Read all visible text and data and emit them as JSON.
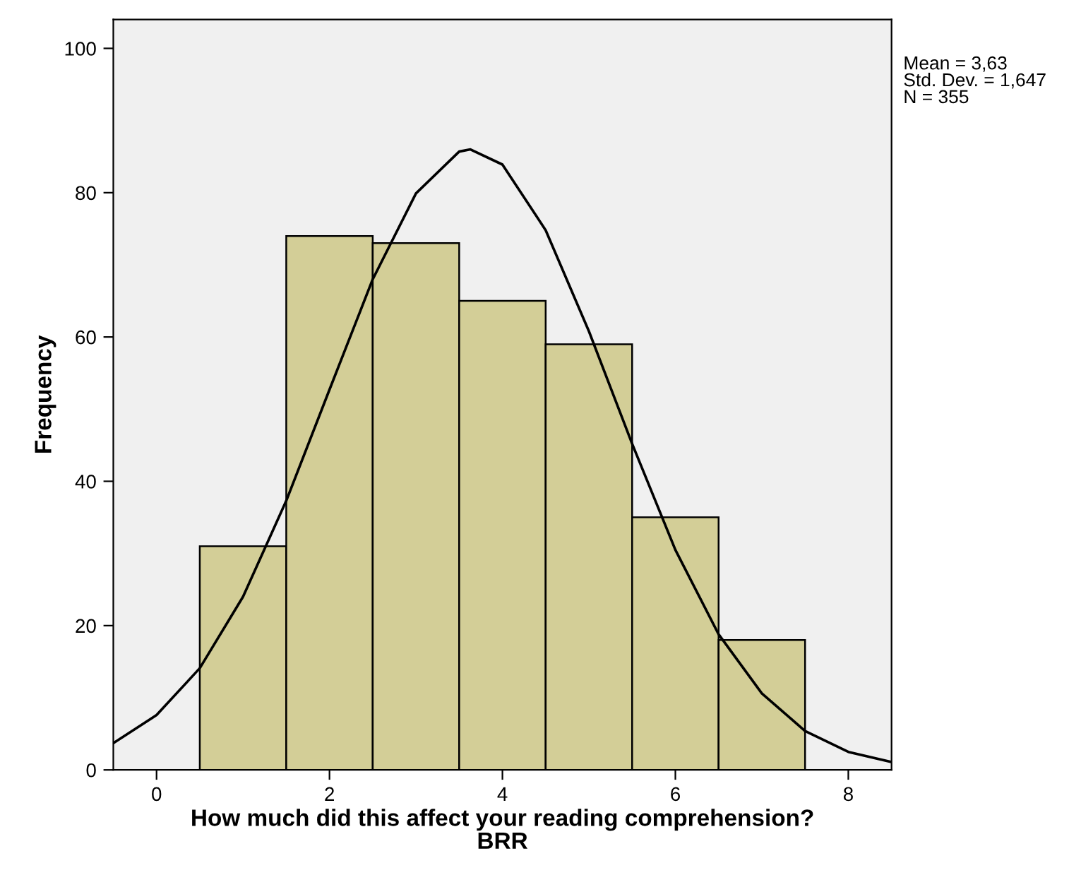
{
  "chart_data": {
    "type": "histogram",
    "xlabel": "How much did this affect your reading comprehension?\nBRR",
    "ylabel": "Frequency",
    "bins": [
      0.5,
      1.5,
      2.5,
      3.5,
      4.5,
      5.5,
      6.5,
      7.5
    ],
    "values": [
      31,
      74,
      73,
      65,
      59,
      35,
      18
    ],
    "color": "#d3ce97",
    "series": [
      {
        "type": "line",
        "color": "#000000",
        "x": [
          -0.5,
          0,
          0.5,
          1,
          1.5,
          2,
          2.5,
          3,
          3.5,
          3.63,
          4,
          4.5,
          5,
          5.5,
          6,
          6.5,
          7,
          7.5,
          8,
          8.5
        ],
        "values": [
          3.7,
          7.6,
          14.1,
          24.0,
          37.3,
          52.7,
          68.0,
          79.9,
          85.7,
          86.0,
          83.9,
          74.8,
          60.8,
          45.2,
          30.5,
          18.8,
          10.6,
          5.4,
          2.5,
          1.1
        ]
      }
    ],
    "annotations": [
      "Mean = 3,63",
      "Std. Dev. = 1,647",
      "N = 355"
    ],
    "xlim": [
      -0.5,
      8.5
    ],
    "ylim": [
      0,
      104
    ],
    "xticks": [
      0,
      2,
      4,
      6,
      8
    ],
    "yticks": [
      0,
      20,
      40,
      60,
      80,
      100
    ],
    "grid": false,
    "legend": false
  }
}
